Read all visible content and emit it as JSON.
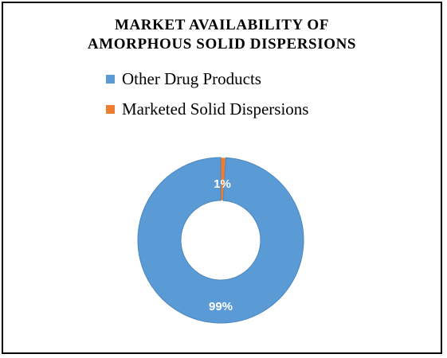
{
  "chart_data": {
    "type": "pie",
    "variant": "doughnut",
    "title_lines": [
      "MARKET AVAILABILITY OF",
      "AMORPHOUS SOLID DISPERSIONS"
    ],
    "categories": [
      "Other Drug Products",
      "Marketed Solid Dispersions"
    ],
    "values": [
      99,
      1
    ],
    "data_labels": [
      "99%",
      "1%"
    ],
    "colors": [
      "#5B9BD5",
      "#ED7D31"
    ],
    "legend_position": "top-left",
    "grid": false
  },
  "colors": {
    "ring_edge": "#4A86C0",
    "label_text": "#ffffff",
    "border": "#000000"
  }
}
